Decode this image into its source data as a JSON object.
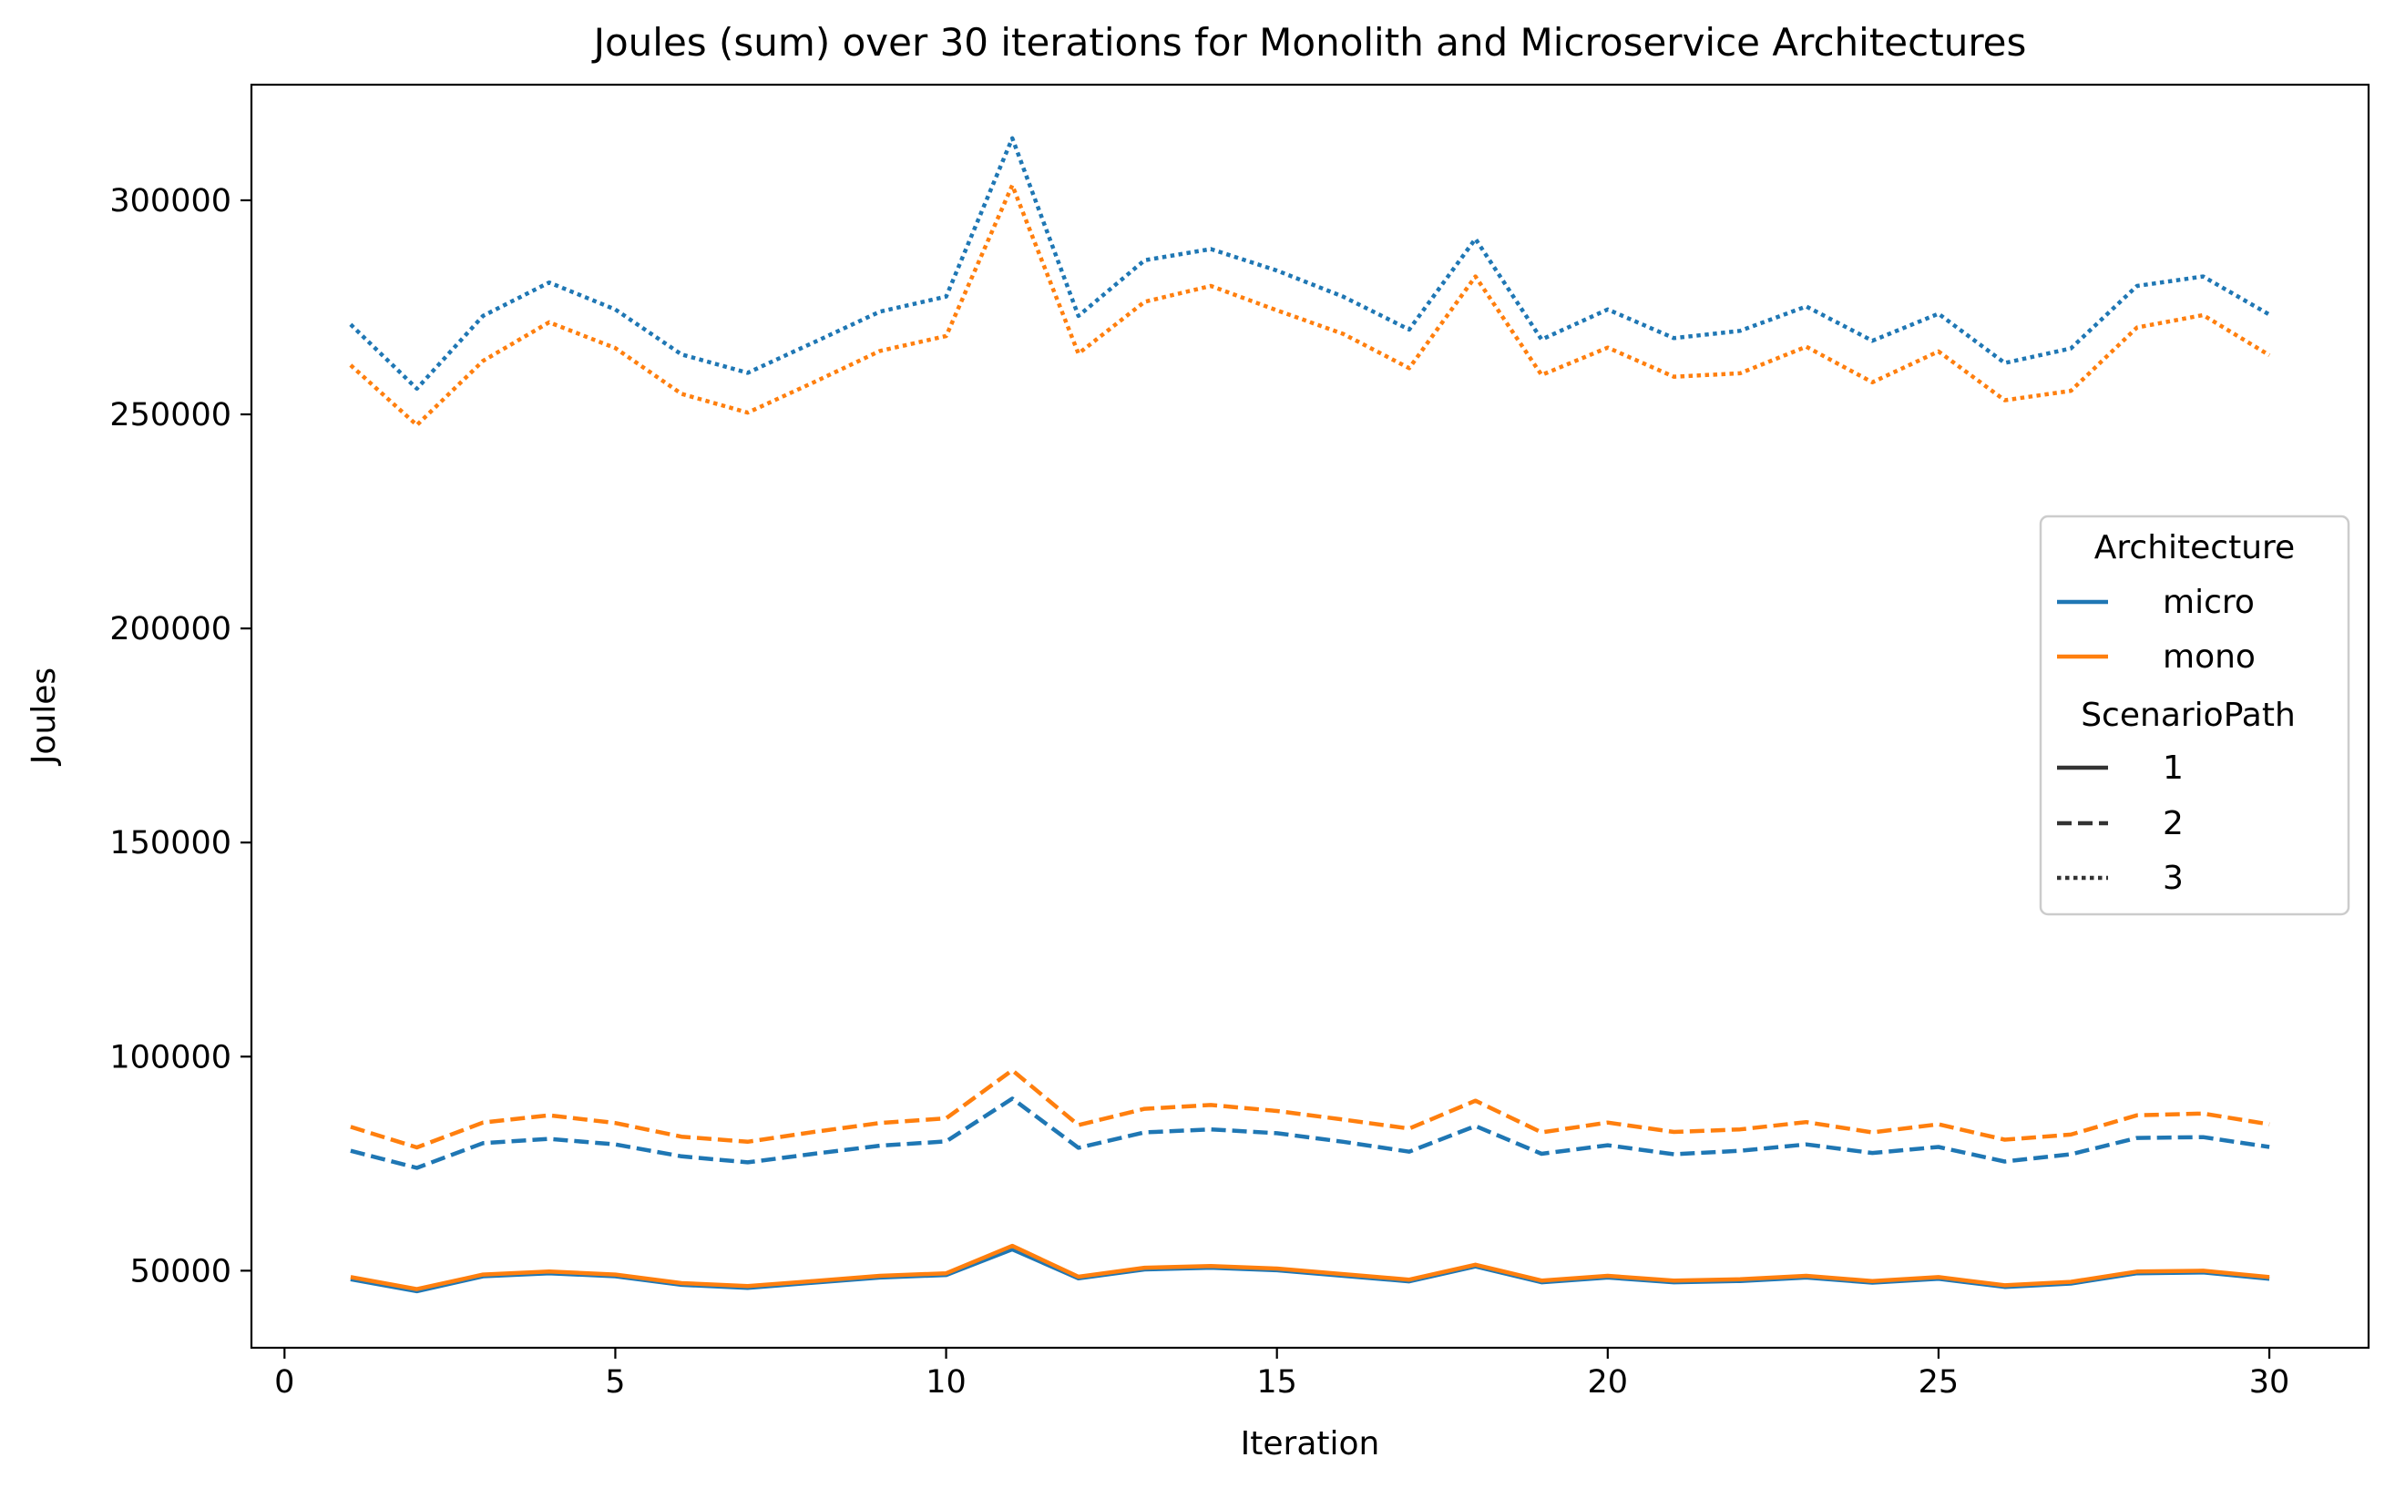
{
  "chart_data": {
    "type": "line",
    "title": "Joules (sum) over 30 iterations for Monolith and Microservice Architectures",
    "xlabel": "Iteration",
    "ylabel": "Joules",
    "xlim": [
      -0.5,
      31.5
    ],
    "ylim": [
      32000,
      327000
    ],
    "xticks": [
      0,
      5,
      10,
      15,
      20,
      25,
      30
    ],
    "yticks": [
      50000,
      100000,
      150000,
      200000,
      250000,
      300000
    ],
    "grid": false,
    "legend_position": "center-right",
    "legend": {
      "hue_title": "Architecture",
      "hue_entries": [
        {
          "label": "micro",
          "color": "#1f77b4"
        },
        {
          "label": "mono",
          "color": "#ff7f0e"
        }
      ],
      "style_title": "ScenarioPath",
      "style_entries": [
        {
          "label": "1",
          "dash": "solid"
        },
        {
          "label": "2",
          "dash": "dashed"
        },
        {
          "label": "3",
          "dash": "dotted"
        }
      ]
    },
    "x": [
      1,
      2,
      3,
      4,
      5,
      6,
      7,
      8,
      9,
      10,
      11,
      12,
      13,
      14,
      15,
      16,
      17,
      18,
      19,
      20,
      21,
      22,
      23,
      24,
      25,
      26,
      27,
      28,
      29,
      30
    ],
    "series": [
      {
        "name": "micro, 1",
        "architecture": "micro",
        "scenario": "1",
        "color": "#1f77b4",
        "dash": "solid",
        "values": [
          48000,
          45200,
          48700,
          49400,
          48700,
          46700,
          46000,
          47200,
          48400,
          49000,
          55000,
          48200,
          50300,
          50700,
          50100,
          48800,
          47500,
          51000,
          47300,
          48400,
          47300,
          47600,
          48400,
          47200,
          48100,
          46200,
          47000,
          49400,
          49600,
          48100
        ]
      },
      {
        "name": "mono, 1",
        "architecture": "mono",
        "scenario": "1",
        "color": "#ff7f0e",
        "dash": "solid",
        "values": [
          48500,
          45700,
          49100,
          49800,
          49100,
          47100,
          46400,
          47600,
          48800,
          49400,
          55800,
          48600,
          50700,
          51100,
          50500,
          49200,
          47900,
          51400,
          47700,
          48800,
          47700,
          48000,
          48800,
          47600,
          48500,
          46600,
          47400,
          49800,
          50000,
          48500
        ]
      },
      {
        "name": "micro, 2",
        "architecture": "micro",
        "scenario": "2",
        "color": "#1f77b4",
        "dash": "dashed",
        "values": [
          78000,
          74000,
          79800,
          80800,
          79500,
          76700,
          75300,
          77300,
          79200,
          80200,
          90200,
          78700,
          82300,
          83000,
          82100,
          80100,
          77800,
          83800,
          77300,
          79300,
          77200,
          78000,
          79500,
          77500,
          78900,
          75500,
          77200,
          81000,
          81200,
          78900
        ]
      },
      {
        "name": "mono, 2",
        "architecture": "mono",
        "scenario": "2",
        "color": "#ff7f0e",
        "dash": "dashed",
        "values": [
          83600,
          78800,
          84600,
          86300,
          84500,
          81300,
          80100,
          82400,
          84500,
          85600,
          96800,
          84000,
          87800,
          88700,
          87300,
          85300,
          83200,
          89700,
          82300,
          84600,
          82400,
          83000,
          84700,
          82300,
          84200,
          80600,
          81800,
          86300,
          86700,
          84200
        ]
      },
      {
        "name": "micro, 3",
        "architecture": "micro",
        "scenario": "3",
        "color": "#1f77b4",
        "dash": "dotted",
        "values": [
          271000,
          256000,
          273000,
          280800,
          274500,
          264000,
          259700,
          266800,
          274000,
          277500,
          314500,
          273000,
          286000,
          288600,
          283600,
          277500,
          269800,
          291000,
          267500,
          274500,
          267800,
          269500,
          275200,
          267200,
          273500,
          262000,
          265400,
          280000,
          282200,
          273300
        ]
      },
      {
        "name": "mono, 3",
        "architecture": "mono",
        "scenario": "3",
        "color": "#ff7f0e",
        "dash": "dotted",
        "values": [
          261500,
          247500,
          262500,
          271500,
          265500,
          254800,
          250400,
          257500,
          264800,
          268300,
          303500,
          264200,
          276300,
          280000,
          274300,
          268800,
          260800,
          282200,
          259200,
          265600,
          258800,
          259600,
          265800,
          257500,
          264700,
          253300,
          255500,
          270300,
          273200,
          263800
        ]
      }
    ]
  }
}
